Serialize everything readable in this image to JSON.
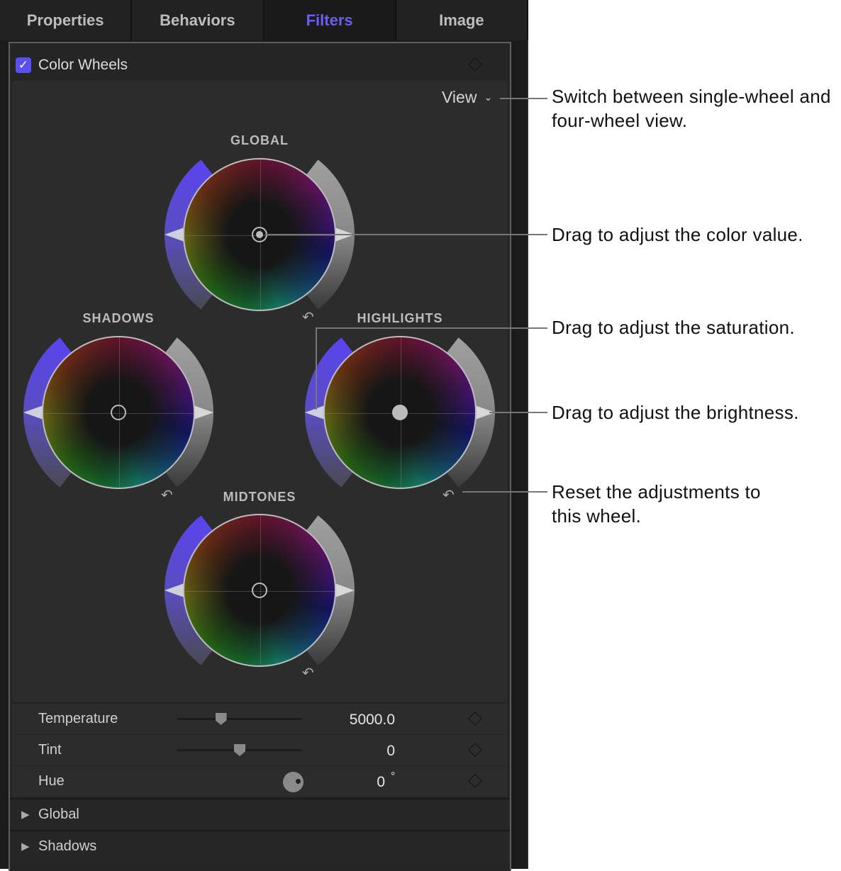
{
  "tabs": [
    {
      "label": "Properties"
    },
    {
      "label": "Behaviors"
    },
    {
      "label": "Filters",
      "active": true
    },
    {
      "label": "Image"
    }
  ],
  "filter": {
    "name": "Color Wheels",
    "enabled": true,
    "view_label": "View"
  },
  "wheels": [
    {
      "label": "GLOBAL",
      "puck": "dot"
    },
    {
      "label": "SHADOWS",
      "puck": "ring"
    },
    {
      "label": "HIGHLIGHTS",
      "puck": "filled"
    },
    {
      "label": "MIDTONES",
      "puck": "ring"
    }
  ],
  "params": [
    {
      "label": "Temperature",
      "value": "5000.0",
      "slider": 0.35
    },
    {
      "label": "Tint",
      "value": "0",
      "slider": 0.5
    },
    {
      "label": "Hue",
      "value": "0",
      "unit": "°"
    }
  ],
  "groups": [
    {
      "label": "Global"
    },
    {
      "label": "Shadows"
    }
  ],
  "callouts": {
    "view": "Switch between single-wheel and four-wheel view.",
    "color": "Drag to adjust the color value.",
    "saturation": "Drag to adjust the saturation.",
    "brightness": "Drag to adjust the brightness.",
    "reset": "Reset the adjustments to this wheel."
  },
  "colors": {
    "accent": "#6b5cf2",
    "saturation_arc": "#5a44f0",
    "brightness_arc": "#a0a0a0"
  }
}
